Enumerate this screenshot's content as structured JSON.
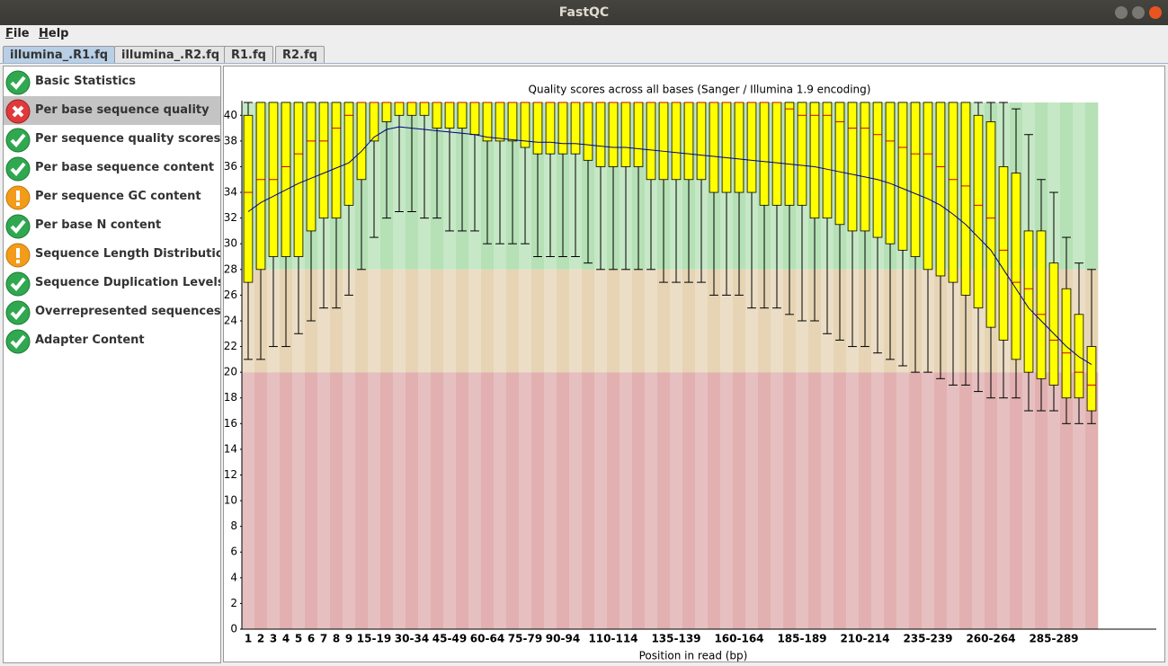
{
  "window_title": "FastQC",
  "menu": [
    "File",
    "Help"
  ],
  "tabs": [
    "illumina_.R1.fq",
    "illumina_.R2.fq",
    "R1.fq",
    "R2.fq"
  ],
  "modules": [
    "Basic Statistics",
    "Per base sequence quality",
    "Per sequence quality scores",
    "Per base sequence content",
    "Per sequence GC content",
    "Per base N content",
    "Sequence Length Distribution",
    "Sequence Duplication Levels",
    "Overrepresented sequences",
    "Adapter Content"
  ],
  "chart_data": {
    "type": "box",
    "title": "Quality scores across all bases (Sanger / Illumina 1.9 encoding)",
    "x_label": "Position in read (bp)",
    "categories": [
      "1",
      "2",
      "3",
      "4",
      "5",
      "6",
      "7",
      "8",
      "9",
      null,
      "15-19",
      null,
      null,
      "30-34",
      null,
      null,
      "45-49",
      null,
      null,
      "60-64",
      null,
      null,
      "75-79",
      null,
      null,
      "90-94",
      null,
      null,
      null,
      "110-114",
      null,
      null,
      null,
      null,
      "135-139",
      null,
      null,
      null,
      null,
      "160-164",
      null,
      null,
      null,
      null,
      "185-189",
      null,
      null,
      null,
      null,
      "210-214",
      null,
      null,
      null,
      null,
      "235-239",
      null,
      null,
      null,
      null,
      "260-264",
      null,
      null,
      null,
      null,
      "285-289",
      null,
      null,
      null
    ],
    "whislo": [
      21,
      21,
      22,
      22,
      23,
      24,
      25,
      25,
      26,
      28,
      30.5,
      32,
      32.5,
      32.5,
      32,
      32,
      31,
      31,
      31,
      30,
      30,
      30,
      30,
      29,
      29,
      29,
      29,
      28.5,
      28,
      28,
      28,
      28,
      28,
      27,
      27,
      27,
      27,
      26,
      26,
      26,
      25,
      25,
      25,
      24.5,
      24,
      24,
      23,
      22.5,
      22,
      22,
      21.5,
      21,
      20.5,
      20,
      20,
      19.5,
      19,
      19,
      18.5,
      18,
      18,
      18,
      17,
      17,
      17,
      16,
      16,
      16
    ],
    "q1": [
      27,
      28,
      29,
      29,
      29,
      31,
      32,
      32,
      33,
      35,
      38,
      39.5,
      40,
      40,
      40,
      39,
      39,
      39,
      38.5,
      38,
      38,
      38,
      37.5,
      37,
      37,
      37,
      37,
      36.5,
      36,
      36,
      36,
      36,
      35,
      35,
      35,
      35,
      35,
      34,
      34,
      34,
      34,
      33,
      33,
      33,
      33,
      32,
      32,
      31.5,
      31,
      31,
      30.5,
      30,
      29.5,
      29,
      28,
      27.5,
      27,
      26,
      25,
      23.5,
      22.5,
      21,
      20,
      19.5,
      19,
      18,
      18,
      17
    ],
    "median": [
      34,
      35,
      35,
      36,
      37,
      38,
      38,
      39,
      40,
      41,
      41,
      41,
      41,
      41,
      41,
      41,
      41,
      41,
      41,
      41,
      41,
      41,
      41,
      41,
      41,
      41,
      41,
      41,
      41,
      41,
      41,
      41,
      41,
      41,
      41,
      41,
      41,
      41,
      41,
      41,
      41,
      41,
      41,
      40.5,
      40,
      40,
      40,
      39.5,
      39,
      39,
      38.5,
      38,
      37.5,
      37,
      37,
      36,
      35,
      34.5,
      33,
      32,
      29.5,
      27,
      26.5,
      24.5,
      22.5,
      21.5,
      20,
      19
    ],
    "q3": [
      40,
      41,
      41,
      41,
      41,
      41,
      41,
      41,
      41,
      41,
      41,
      41,
      41,
      41,
      41,
      41,
      41,
      41,
      41,
      41,
      41,
      41,
      41,
      41,
      41,
      41,
      41,
      41,
      41,
      41,
      41,
      41,
      41,
      41,
      41,
      41,
      41,
      41,
      41,
      41,
      41,
      41,
      41,
      41,
      41,
      41,
      41,
      41,
      41,
      41,
      41,
      41,
      41,
      41,
      41,
      41,
      41,
      41,
      40,
      39.5,
      36,
      35.5,
      31,
      31,
      28.5,
      26.5,
      24.5,
      22
    ],
    "whishi": [
      41,
      41,
      41,
      41,
      41,
      41,
      41,
      41,
      41,
      41,
      41,
      41,
      41,
      41,
      41,
      41,
      41,
      41,
      41,
      41,
      41,
      41,
      41,
      41,
      41,
      41,
      41,
      41,
      41,
      41,
      41,
      41,
      41,
      41,
      41,
      41,
      41,
      41,
      41,
      41,
      41,
      41,
      41,
      41,
      41,
      41,
      41,
      41,
      41,
      41,
      41,
      41,
      41,
      41,
      41,
      41,
      41,
      41,
      41,
      41,
      41,
      40.5,
      38.5,
      35,
      34,
      30.5,
      28.5,
      28
    ],
    "mean": [
      32.5,
      33.2,
      33.7,
      34.2,
      34.7,
      35.1,
      35.5,
      35.9,
      36.3,
      37.2,
      38.3,
      38.9,
      39.1,
      39,
      38.9,
      38.8,
      38.7,
      38.6,
      38.5,
      38.3,
      38.2,
      38.1,
      38,
      37.9,
      37.9,
      37.8,
      37.8,
      37.7,
      37.6,
      37.5,
      37.5,
      37.4,
      37.3,
      37.2,
      37.1,
      37,
      36.9,
      36.8,
      36.7,
      36.6,
      36.5,
      36.4,
      36.3,
      36.2,
      36.1,
      36,
      35.8,
      35.6,
      35.4,
      35.2,
      35,
      34.7,
      34.3,
      33.9,
      33.5,
      33,
      32.3,
      31.5,
      30.5,
      29.5,
      28,
      26.5,
      25,
      24,
      23,
      22,
      21.2,
      20.6
    ],
    "box_color": "#ffff00",
    "median_color": "#cc0000",
    "mean_color": "#000080",
    "bands": [
      {
        "from": 0,
        "to": 20,
        "colors": [
          "#e6c0c0",
          "#e2b0b0"
        ]
      },
      {
        "from": 20,
        "to": 28,
        "colors": [
          "#ecdec6",
          "#e6d4b4"
        ]
      },
      {
        "from": 28,
        "to": 41,
        "colors": [
          "#c6e8c6",
          "#b6e0b6"
        ]
      }
    ],
    "ylim": [
      0,
      41
    ],
    "yticks": [
      0,
      2,
      4,
      6,
      8,
      10,
      12,
      14,
      16,
      18,
      20,
      22,
      24,
      26,
      28,
      30,
      32,
      34,
      36,
      38,
      40
    ]
  }
}
